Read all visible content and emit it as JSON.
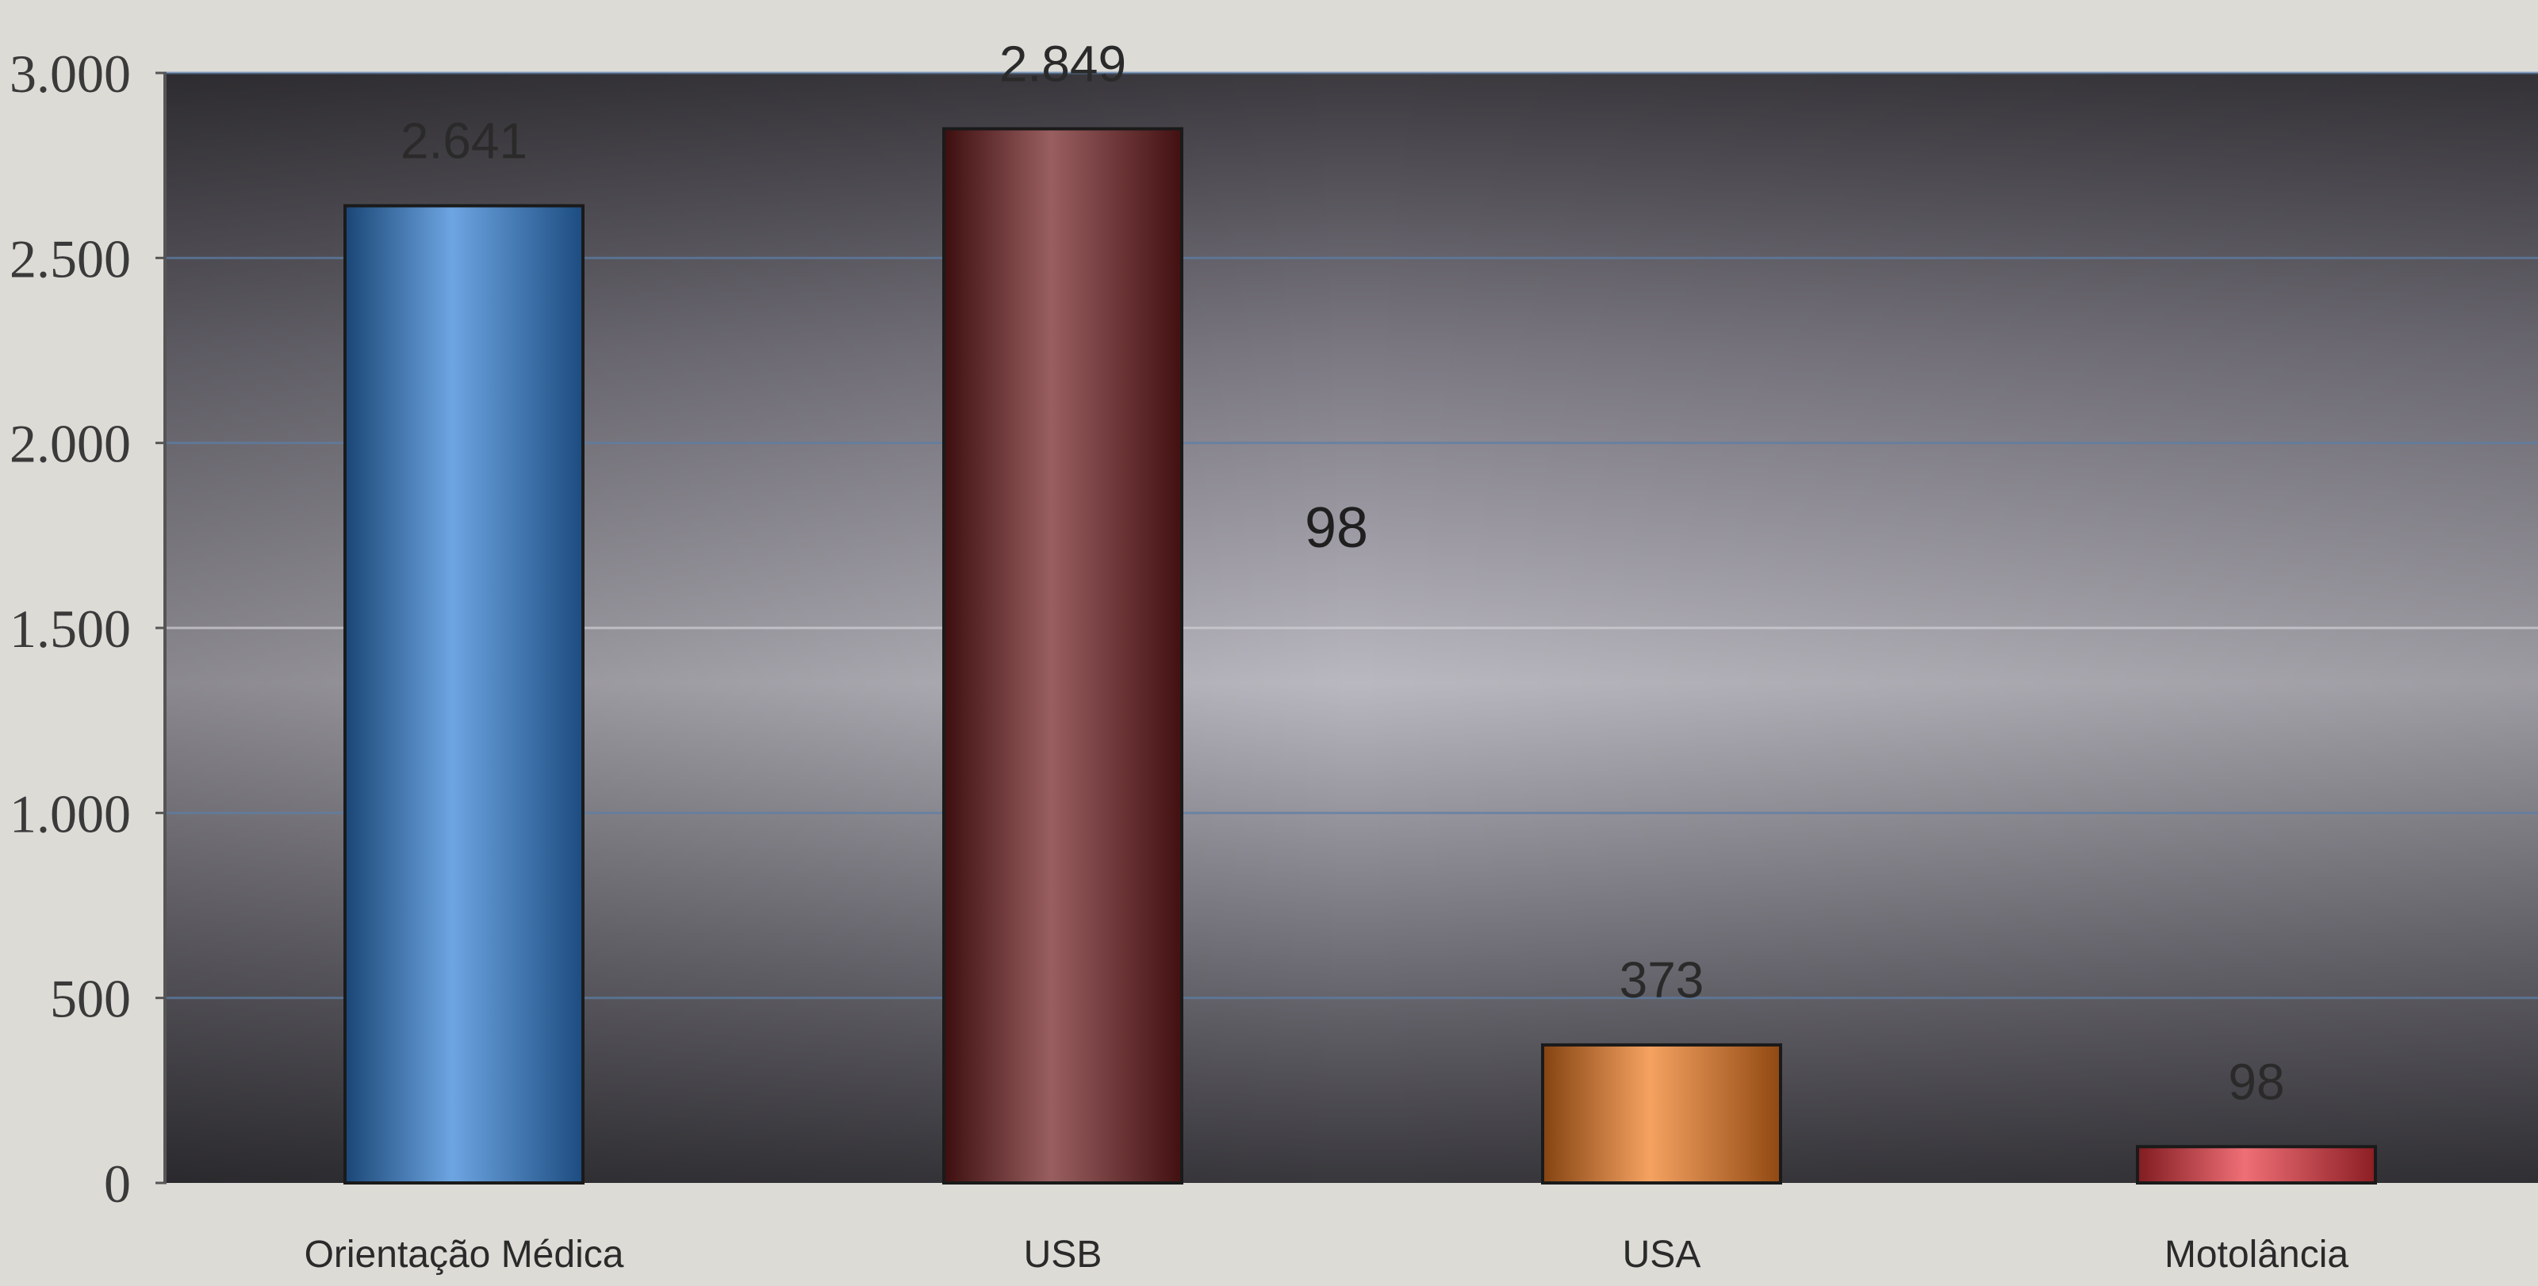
{
  "chart_data": {
    "type": "bar",
    "title": "",
    "xlabel": "",
    "ylabel": "",
    "categories": [
      "Orientação Médica",
      "USB",
      "USA",
      "Motolância"
    ],
    "values": [
      2641,
      2849,
      373,
      98
    ],
    "data_labels": [
      "2.641",
      "2.849",
      "373",
      "98"
    ],
    "colors": [
      "#2f7fd6",
      "#6e1a1c",
      "#f07a1e",
      "#e8323c"
    ],
    "ylim": [
      0,
      3000
    ],
    "yticks": [
      {
        "value": 0,
        "label": "0"
      },
      {
        "value": 500,
        "label": "500"
      },
      {
        "value": 1000,
        "label": "1.000"
      },
      {
        "value": 1500,
        "label": "1.500"
      },
      {
        "value": 2000,
        "label": "2.000"
      },
      {
        "value": 2500,
        "label": "2.500"
      },
      {
        "value": 3000,
        "label": "3.000"
      }
    ],
    "grid": true,
    "legend": "none",
    "floating_label": "98"
  }
}
